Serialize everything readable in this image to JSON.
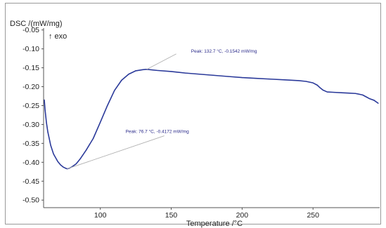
{
  "chart_data": {
    "type": "line",
    "title": "",
    "ylabel": "DSC /(mW/mg)",
    "xlabel": "Temperature /°C",
    "exo_label": "↑ exo",
    "xlim": [
      60,
      297
    ],
    "ylim": [
      -0.52,
      -0.045
    ],
    "xticks": [
      100,
      150,
      200,
      250
    ],
    "yticks": [
      -0.05,
      -0.1,
      -0.15,
      -0.2,
      -0.25,
      -0.3,
      -0.35,
      -0.4,
      -0.45,
      -0.5
    ],
    "ytick_labels": [
      "-0.05",
      "-0.10",
      "-0.15",
      "-0.20",
      "-0.25",
      "-0.30",
      "-0.35",
      "-0.40",
      "-0.45",
      "-0.50"
    ],
    "grid": false,
    "series": [
      {
        "color": "#2b3a9a",
        "x": [
          60.5,
          61,
          62,
          63,
          65,
          67,
          70,
          72,
          74,
          76,
          76.7,
          78,
          80,
          83,
          86,
          90,
          95,
          100,
          105,
          110,
          115,
          120,
          125,
          130,
          132.7,
          135,
          140,
          150,
          160,
          170,
          180,
          190,
          200,
          210,
          220,
          230,
          240,
          245,
          250,
          253,
          255,
          257,
          260,
          265,
          270,
          275,
          280,
          285,
          288,
          290,
          293,
          296
        ],
        "y": [
          -0.235,
          -0.26,
          -0.295,
          -0.32,
          -0.355,
          -0.378,
          -0.398,
          -0.407,
          -0.413,
          -0.4165,
          -0.4172,
          -0.416,
          -0.412,
          -0.404,
          -0.39,
          -0.368,
          -0.337,
          -0.294,
          -0.25,
          -0.21,
          -0.183,
          -0.167,
          -0.158,
          -0.155,
          -0.1542,
          -0.155,
          -0.157,
          -0.16,
          -0.164,
          -0.167,
          -0.17,
          -0.173,
          -0.176,
          -0.178,
          -0.18,
          -0.182,
          -0.184,
          -0.186,
          -0.19,
          -0.196,
          -0.203,
          -0.209,
          -0.214,
          -0.215,
          -0.216,
          -0.217,
          -0.218,
          -0.222,
          -0.228,
          -0.232,
          -0.236,
          -0.244
        ]
      }
    ],
    "annotations": [
      {
        "text": "Peak: 132.7 °C, -0.1542 mW/mg",
        "x": 132.7,
        "y": -0.1542
      },
      {
        "text": "Peak: 76.7 °C, -0.4172 mW/mg",
        "x": 76.7,
        "y": -0.4172
      }
    ]
  }
}
